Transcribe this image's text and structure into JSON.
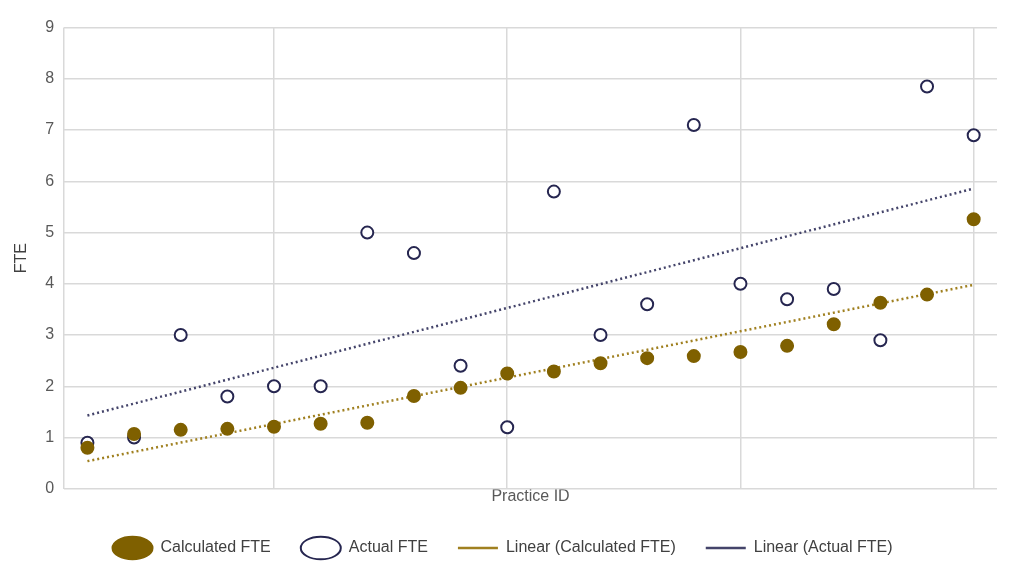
{
  "chart_data": {
    "type": "scatter",
    "xlabel": "Practice ID",
    "ylabel": "FTE",
    "categories": [
      null,
      null,
      null,
      null,
      null,
      null,
      null,
      null,
      null,
      null,
      null,
      null,
      null,
      null,
      null,
      null,
      null,
      null,
      null,
      null
    ],
    "ylim": [
      0,
      9
    ],
    "yticks": [
      0,
      1,
      2,
      3,
      4,
      5,
      6,
      7,
      8,
      9
    ],
    "grid": true,
    "legend": "bottom",
    "tick_labels": "y",
    "marker": "circle",
    "series": [
      {
        "name": "Calculated FTE",
        "color": "#7f6000",
        "values": [
          0.8,
          1.07,
          1.15,
          1.17,
          1.21,
          1.27,
          1.29,
          1.81,
          1.97,
          2.25,
          2.29,
          2.45,
          2.55,
          2.59,
          2.67,
          2.79,
          3.21,
          3.63,
          3.79,
          5.26
        ]
      },
      {
        "name": "Actual FTE",
        "color": "#262650",
        "values": [
          0.9,
          1.0,
          3.0,
          1.8,
          2.0,
          2.0,
          5.0,
          4.6,
          2.4,
          1.2,
          5.8,
          3.0,
          3.6,
          7.1,
          4.0,
          3.7,
          3.9,
          2.9,
          7.85,
          6.9
        ]
      },
      {
        "name": "Linear (Calculated FTE)",
        "type": "line",
        "marker": "none",
        "line_style": "dotted",
        "color": "#a08020",
        "values": [
          0.54,
          null,
          null,
          null,
          null,
          null,
          null,
          null,
          null,
          null,
          null,
          null,
          null,
          null,
          null,
          null,
          null,
          null,
          null,
          3.98
        ]
      },
      {
        "name": "Linear (Actual FTE)",
        "type": "line",
        "marker": "none",
        "line_style": "dotted",
        "color": "#44446a",
        "values": [
          1.43,
          null,
          null,
          null,
          null,
          null,
          null,
          null,
          null,
          null,
          null,
          null,
          null,
          null,
          null,
          null,
          null,
          null,
          null,
          5.86
        ]
      }
    ]
  }
}
